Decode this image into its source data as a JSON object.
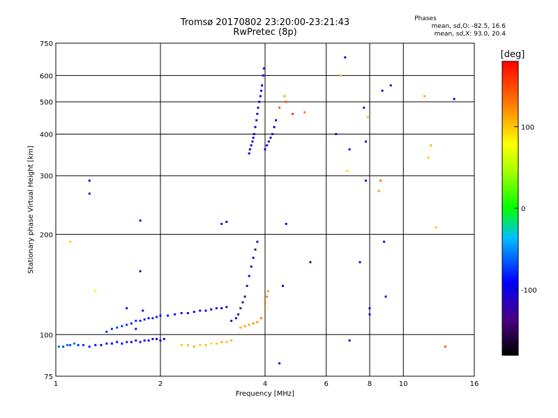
{
  "chart_data": {
    "type": "scatter",
    "title": "Tromsø 20170802 23:20:00-23:21:43",
    "subtitle": "RwPretec (8p)",
    "xlabel": "Frequency [MHz]",
    "ylabel": "Stationary phase Virtual Height [km]",
    "x_scale": "log2",
    "y_scale": "log",
    "xlim": [
      1,
      16
    ],
    "ylim": [
      75,
      750
    ],
    "x_ticks": [
      1,
      2,
      4,
      8,
      16
    ],
    "x_tick_labels": [
      "1",
      "2",
      "4",
      "8",
      "16"
    ],
    "x_minor_labels": [
      6,
      10
    ],
    "x_minor_labels_text": [
      "6",
      "10"
    ],
    "x_grid_lines": [
      1,
      2,
      4,
      6,
      8,
      10,
      16
    ],
    "y_ticks": [
      75,
      100,
      200,
      300,
      400,
      500,
      600,
      750
    ],
    "y_tick_labels": [
      "75",
      "100",
      "200",
      "300",
      "400",
      "500",
      "600",
      "750"
    ],
    "grid": true,
    "phase_box": {
      "title": "Phases",
      "line1": "mean, sd,O:  -82.5, 16.6",
      "line2": "mean, sd,X:  93.0, 20.4"
    },
    "colorbar": {
      "label": "[deg]",
      "range": [
        -180,
        180
      ],
      "ticks": [
        100,
        0,
        -100
      ],
      "tick_labels": [
        "100",
        "0",
        "-100"
      ]
    },
    "series": [
      {
        "points": [
          [
            1.02,
            92,
            -60
          ],
          [
            1.05,
            92,
            -70
          ],
          [
            1.08,
            93,
            -65
          ],
          [
            1.1,
            93,
            -72
          ],
          [
            1.13,
            94,
            -60
          ],
          [
            1.16,
            93,
            -75
          ],
          [
            1.2,
            93,
            -80
          ],
          [
            1.25,
            92,
            -85
          ],
          [
            1.3,
            93,
            -90
          ],
          [
            1.35,
            93,
            -95
          ],
          [
            1.4,
            94,
            -85
          ],
          [
            1.45,
            94,
            -90
          ],
          [
            1.5,
            95,
            -95
          ],
          [
            1.55,
            94,
            -92
          ],
          [
            1.6,
            95,
            -90
          ],
          [
            1.65,
            95,
            -95
          ],
          [
            1.7,
            96,
            -98
          ],
          [
            1.75,
            95,
            -100
          ],
          [
            1.8,
            96,
            -95
          ],
          [
            1.85,
            96,
            -100
          ],
          [
            1.9,
            97,
            -98
          ],
          [
            1.95,
            97,
            -100
          ],
          [
            2.0,
            96,
            -95
          ],
          [
            2.05,
            97,
            -100
          ],
          [
            1.5,
            105,
            -70
          ],
          [
            1.55,
            106,
            -75
          ],
          [
            1.6,
            107,
            -72
          ],
          [
            1.65,
            108,
            -80
          ],
          [
            1.7,
            110,
            -78
          ],
          [
            1.75,
            110,
            -80
          ],
          [
            1.8,
            111,
            -82
          ],
          [
            1.85,
            112,
            -85
          ],
          [
            1.9,
            112,
            -80
          ],
          [
            1.95,
            113,
            -82
          ],
          [
            2.0,
            114,
            -85
          ],
          [
            2.1,
            114,
            -88
          ],
          [
            2.2,
            115,
            -90
          ],
          [
            2.3,
            116,
            -88
          ],
          [
            2.4,
            116,
            -90
          ],
          [
            2.5,
            117,
            -92
          ],
          [
            2.6,
            118,
            -95
          ],
          [
            2.7,
            118,
            -90
          ],
          [
            2.8,
            119,
            -95
          ],
          [
            2.9,
            120,
            -98
          ],
          [
            3.0,
            120,
            -100
          ],
          [
            3.1,
            121,
            -105
          ],
          [
            1.4,
            102,
            -80
          ],
          [
            1.45,
            104,
            -78
          ],
          [
            1.6,
            120,
            -95
          ],
          [
            1.78,
            118,
            -90
          ],
          [
            1.7,
            104,
            -85
          ]
        ]
      },
      {
        "points": [
          [
            2.3,
            93,
            100
          ],
          [
            2.4,
            93,
            105
          ],
          [
            2.5,
            92,
            110
          ],
          [
            2.6,
            93,
            100
          ],
          [
            2.7,
            93,
            105
          ],
          [
            2.8,
            94,
            95
          ],
          [
            2.9,
            94,
            100
          ],
          [
            3.0,
            95,
            110
          ],
          [
            3.1,
            95,
            105
          ],
          [
            3.2,
            96,
            108
          ],
          [
            3.4,
            105,
            110
          ],
          [
            3.5,
            106,
            115
          ],
          [
            3.6,
            107,
            110
          ],
          [
            3.7,
            108,
            120
          ],
          [
            3.8,
            109,
            115
          ],
          [
            3.9,
            112,
            125
          ],
          [
            4.0,
            120,
            120
          ],
          [
            4.05,
            130,
            125
          ],
          [
            4.0,
            125,
            130
          ],
          [
            4.08,
            135,
            120
          ]
        ]
      },
      {
        "points": [
          [
            3.2,
            110,
            -120
          ],
          [
            3.3,
            112,
            -115
          ],
          [
            3.35,
            115,
            -120
          ],
          [
            3.4,
            120,
            -118
          ],
          [
            3.45,
            125,
            -120
          ],
          [
            3.5,
            130,
            -122
          ],
          [
            3.55,
            140,
            -118
          ],
          [
            3.6,
            150,
            -120
          ],
          [
            3.65,
            160,
            -115
          ],
          [
            3.7,
            170,
            -118
          ],
          [
            3.75,
            180,
            -120
          ],
          [
            3.8,
            190,
            -120
          ]
        ]
      },
      {
        "points": [
          [
            3.6,
            350,
            -95
          ],
          [
            3.62,
            360,
            -98
          ],
          [
            3.65,
            370,
            -100
          ],
          [
            3.68,
            380,
            -95
          ],
          [
            3.7,
            390,
            -100
          ],
          [
            3.72,
            400,
            -98
          ],
          [
            3.75,
            420,
            -95
          ],
          [
            3.78,
            440,
            -100
          ],
          [
            3.8,
            460,
            -95
          ],
          [
            3.82,
            480,
            -98
          ],
          [
            3.85,
            500,
            -95
          ],
          [
            3.88,
            520,
            -100
          ],
          [
            3.9,
            540,
            -95
          ],
          [
            3.92,
            560,
            -98
          ],
          [
            3.95,
            600,
            -100
          ],
          [
            3.97,
            630,
            -95
          ],
          [
            4.0,
            360,
            -98
          ],
          [
            4.05,
            370,
            -95
          ],
          [
            4.1,
            380,
            -100
          ],
          [
            4.15,
            390,
            -95
          ],
          [
            4.2,
            400,
            -98
          ],
          [
            4.25,
            420,
            -95
          ],
          [
            4.3,
            440,
            -100
          ]
        ]
      },
      {
        "points": [
          [
            1.25,
            290,
            -90
          ],
          [
            1.25,
            265,
            -120
          ],
          [
            1.75,
            220,
            -100
          ],
          [
            1.75,
            155,
            -110
          ],
          [
            1.1,
            190,
            100
          ],
          [
            1.3,
            135,
            80
          ],
          [
            3.0,
            215,
            -120
          ],
          [
            3.1,
            218,
            -110
          ],
          [
            4.5,
            140,
            -110
          ],
          [
            4.6,
            215,
            -110
          ],
          [
            4.4,
            480,
            140
          ],
          [
            4.6,
            500,
            150
          ],
          [
            4.8,
            460,
            155
          ],
          [
            5.2,
            465,
            130
          ],
          [
            4.55,
            520,
            110
          ],
          [
            4.4,
            82,
            -120
          ],
          [
            5.4,
            165,
            -120
          ],
          [
            6.4,
            400,
            -110
          ],
          [
            6.6,
            600,
            100
          ],
          [
            6.8,
            680,
            -100
          ],
          [
            6.9,
            310,
            95
          ],
          [
            7.0,
            360,
            -110
          ],
          [
            7.0,
            96,
            -115
          ],
          [
            7.5,
            165,
            -120
          ],
          [
            7.7,
            480,
            -100
          ],
          [
            7.8,
            380,
            -115
          ],
          [
            7.8,
            290,
            -120
          ],
          [
            7.9,
            450,
            100
          ],
          [
            8.0,
            120,
            -105
          ],
          [
            8.0,
            115,
            -110
          ],
          [
            8.5,
            270,
            120
          ],
          [
            8.6,
            290,
            130
          ],
          [
            8.8,
            190,
            -120
          ],
          [
            8.9,
            130,
            -120
          ],
          [
            9.2,
            560,
            -105
          ],
          [
            8.7,
            540,
            -110
          ],
          [
            11.5,
            520,
            110
          ],
          [
            11.8,
            340,
            100
          ],
          [
            12.0,
            370,
            105
          ],
          [
            12.4,
            210,
            95
          ],
          [
            13.2,
            92,
            140
          ],
          [
            14.0,
            510,
            -90
          ]
        ]
      }
    ]
  }
}
